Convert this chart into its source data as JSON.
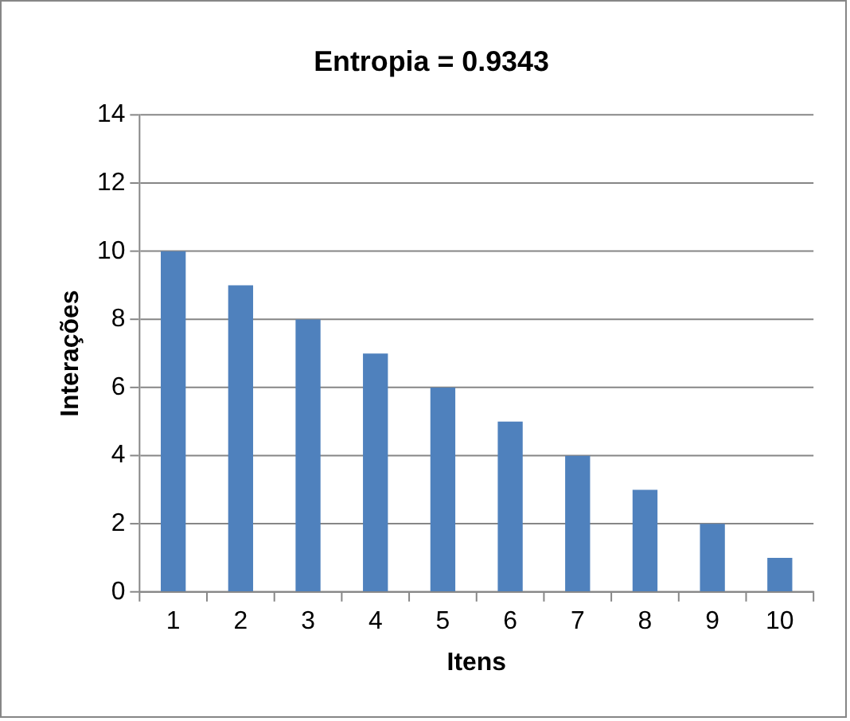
{
  "chart_data": {
    "type": "bar",
    "title": "Entropia = 0.9343",
    "xlabel": "Itens",
    "ylabel": "Interações",
    "categories": [
      "1",
      "2",
      "3",
      "4",
      "5",
      "6",
      "7",
      "8",
      "9",
      "10"
    ],
    "values": [
      10,
      9,
      8,
      7,
      6,
      5,
      4,
      3,
      2,
      1
    ],
    "color": "#4f81bd",
    "ylim": [
      0,
      14
    ],
    "yticks": [
      0,
      2,
      4,
      6,
      8,
      10,
      12,
      14
    ],
    "grid": "y",
    "legend": false
  }
}
